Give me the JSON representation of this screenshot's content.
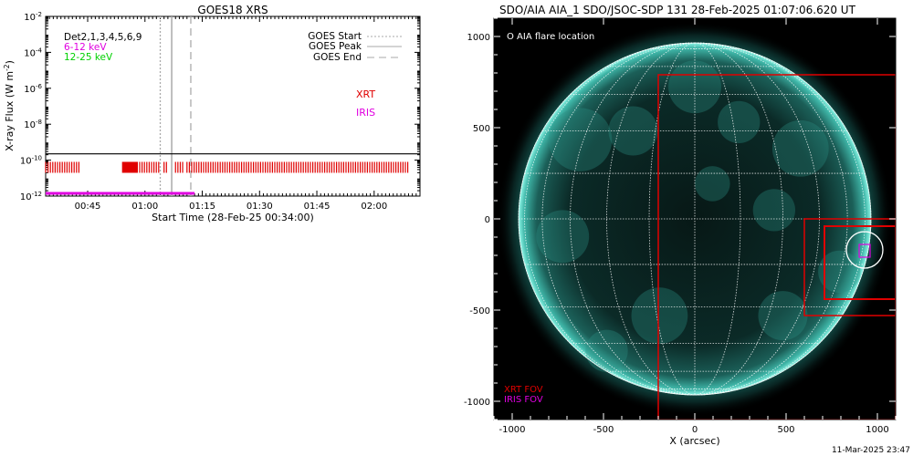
{
  "footer": {
    "timestamp": "11-Mar-2025 23:47"
  },
  "chart_data": [
    {
      "type": "line",
      "title": "GOES18 XRS",
      "xlabel": "Start Time (28-Feb-25 00:34:00)",
      "ylabel": "X-ray Flux (W m",
      "ylabel_sup": "-2",
      "ylabel_tail": ")",
      "x_range": [
        "00:34",
        "02:12"
      ],
      "x_ticks": [
        "00:45",
        "01:00",
        "01:15",
        "01:30",
        "01:45",
        "02:00"
      ],
      "y_scale": "log",
      "y_range": [
        1e-12,
        0.01
      ],
      "y_ticks": [
        {
          "base": "10",
          "exp": "-2",
          "value": -2
        },
        {
          "base": "10",
          "exp": "-4",
          "value": -4
        },
        {
          "base": "10",
          "exp": "-6",
          "value": -6
        },
        {
          "base": "10",
          "exp": "-8",
          "value": -8
        },
        {
          "base": "10",
          "exp": "-10",
          "value": -10
        },
        {
          "base": "10",
          "exp": "-12",
          "value": -12
        }
      ],
      "channels": [
        {
          "label": "Det2,1,3,4,5,6,9",
          "color": "#000000"
        },
        {
          "label": "6-12 keV",
          "color": "#e000e0"
        },
        {
          "label": "12-25 keV",
          "color": "#00d000"
        }
      ],
      "series": [
        {
          "name": "GOES",
          "color": "#000000",
          "level": -9.65,
          "x": [
            "00:34",
            "02:12"
          ]
        },
        {
          "name": "IRIS",
          "color": "#e000e0",
          "level": -11.85,
          "x": [
            "00:34",
            "01:13"
          ]
        }
      ],
      "events": [
        {
          "label": "GOES Start",
          "time": "01:04",
          "style": "dotted",
          "color": "#aaaaaa"
        },
        {
          "label": "GOES Peak",
          "time": "01:07",
          "style": "solid",
          "color": "#aaaaaa"
        },
        {
          "label": "GOES End",
          "time": "01:12",
          "style": "dashed",
          "color": "#aaaaaa"
        }
      ],
      "instrument_labels": [
        {
          "label": "XRT",
          "color": "#e00000"
        },
        {
          "label": "IRIS",
          "color": "#e000e0"
        }
      ],
      "xrt_observations": {
        "color": "#e00000",
        "level": -10.4,
        "segments": [
          {
            "start": "00:34",
            "end": "00:43",
            "dense": false
          },
          {
            "start": "00:54",
            "end": "00:58",
            "dense": true
          },
          {
            "start": "00:58",
            "end": "01:04",
            "dense": false
          },
          {
            "start": "01:05",
            "end": "01:06",
            "dense": false
          },
          {
            "start": "01:08",
            "end": "01:10",
            "dense": false
          },
          {
            "start": "01:11",
            "end": "02:09",
            "dense": false
          }
        ]
      }
    },
    {
      "type": "map",
      "title": "SDO/AIA AIA_1 SDO/JSOC-SDP 131 28-Feb-2025 01:07:06.620 UT",
      "xlabel": "X (arcsec)",
      "ylabel": "",
      "xlim": [
        -1100,
        1100
      ],
      "ylim": [
        -1100,
        1100
      ],
      "x_ticks": [
        "-1000",
        "-500",
        "0",
        "500",
        "1000"
      ],
      "y_ticks": [
        "1000",
        "500",
        "0",
        "-500",
        "-1000"
      ],
      "solar_radius_arcsec": 965,
      "legend_top": "O AIA flare location",
      "legend_bottom": [
        {
          "label": "XRT FOV",
          "color": "#e00000"
        },
        {
          "label": "IRIS FOV",
          "color": "#e000e0"
        }
      ],
      "flare_location": {
        "x": 930,
        "y": -170,
        "radius": 100
      },
      "xrt_fov": [
        {
          "x0": -200,
          "x1": 1100,
          "y0": -1100,
          "y1": 790
        },
        {
          "x0": 600,
          "x1": 1100,
          "y0": -530,
          "y1": 0
        },
        {
          "x0": 710,
          "x1": 1100,
          "y0": -440,
          "y1": -40
        }
      ],
      "iris_fov": {
        "x0": 900,
        "x1": 960,
        "y0": -210,
        "y1": -140
      }
    }
  ]
}
